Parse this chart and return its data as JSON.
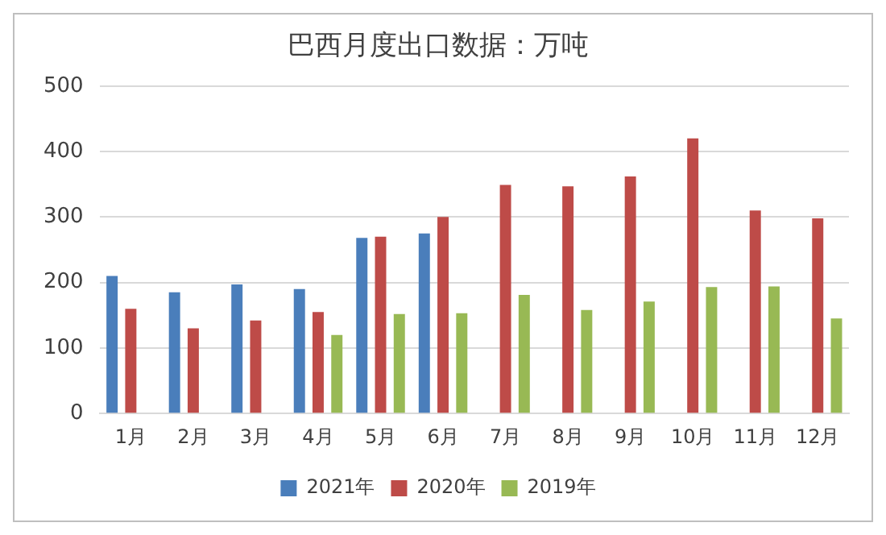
{
  "chart_data": {
    "type": "bar",
    "title": "巴西月度出口数据：万吨",
    "categories": [
      "1月",
      "2月",
      "3月",
      "4月",
      "5月",
      "6月",
      "7月",
      "8月",
      "9月",
      "10月",
      "11月",
      "12月"
    ],
    "series": [
      {
        "name": "2021年",
        "color": "#4a7ebb",
        "values": [
          210,
          185,
          197,
          190,
          268,
          275,
          null,
          null,
          null,
          null,
          null,
          null
        ]
      },
      {
        "name": "2020年",
        "color": "#be4b48",
        "values": [
          160,
          130,
          142,
          155,
          270,
          300,
          349,
          347,
          362,
          420,
          310,
          298
        ]
      },
      {
        "name": "2019年",
        "color": "#98b954",
        "values": [
          null,
          null,
          null,
          120,
          152,
          153,
          181,
          158,
          171,
          193,
          194,
          145
        ]
      }
    ],
    "ylim": [
      0,
      500
    ],
    "yticks": [
      0,
      100,
      200,
      300,
      400,
      500
    ],
    "grid": "y",
    "legend": "bottom"
  }
}
